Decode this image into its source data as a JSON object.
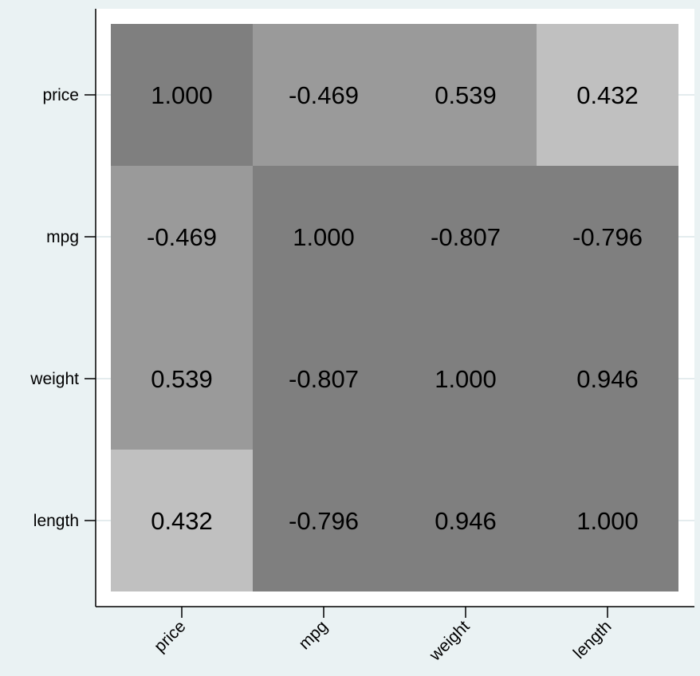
{
  "chart_data": {
    "type": "heatmap",
    "title": "",
    "xlabel": "",
    "ylabel": "",
    "categories": [
      "price",
      "mpg",
      "weight",
      "length"
    ],
    "x_categories": [
      "price",
      "mpg",
      "weight",
      "length"
    ],
    "y_categories": [
      "price",
      "mpg",
      "weight",
      "length"
    ],
    "values": [
      [
        1.0,
        -0.469,
        0.539,
        0.432
      ],
      [
        -0.469,
        1.0,
        -0.807,
        -0.796
      ],
      [
        0.539,
        -0.807,
        1.0,
        0.946
      ],
      [
        0.432,
        -0.796,
        0.946,
        1.0
      ]
    ],
    "value_labels": [
      [
        "1.000",
        "-0.469",
        "0.539",
        "0.432"
      ],
      [
        "-0.469",
        "1.000",
        "-0.807",
        "-0.796"
      ],
      [
        "0.539",
        "-0.807",
        "1.000",
        "0.946"
      ],
      [
        "0.432",
        "-0.796",
        "0.946",
        "1.000"
      ]
    ],
    "x_tick_rotation": 45,
    "legend": "none",
    "grid": true,
    "colors": {
      "background": "#eaf2f3",
      "plot_area": "#ffffff",
      "gridline": "#e4ecee",
      "axis": "#000000",
      "cell_strong": "#7f7f7f",
      "cell_mid": "#9a9a9a",
      "cell_weak": "#c0c0c0",
      "label_text": "#000000"
    }
  }
}
